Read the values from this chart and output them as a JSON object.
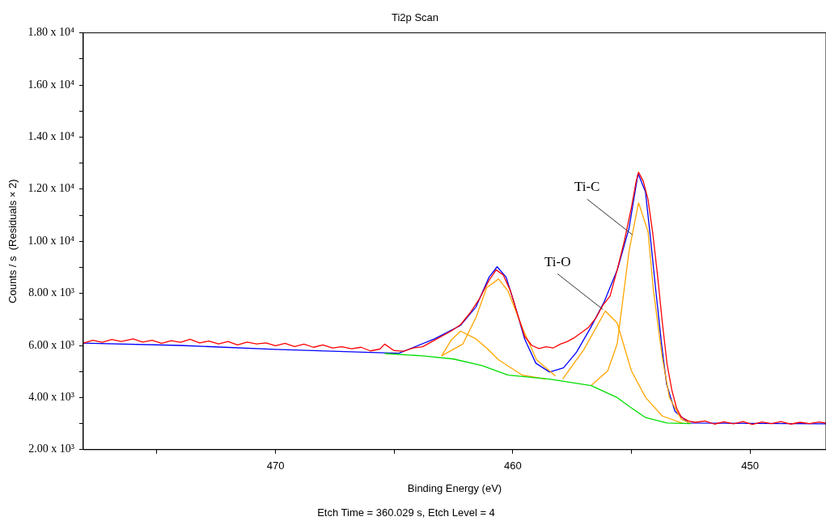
{
  "chart_data": {
    "type": "line",
    "title": "Ti2p Scan",
    "xlabel": "Binding Energy (eV)",
    "ylabel": "Counts / s  (Residuals × 2)",
    "xlim": [
      478.1,
      446.8
    ],
    "xticks": [
      {
        "value": 475,
        "label": null
      },
      470,
      {
        "value": 465,
        "label": null
      },
      460,
      {
        "value": 455,
        "label": null
      },
      450
    ],
    "ylim": [
      2000,
      18000
    ],
    "yticks": [
      {
        "value": 2000,
        "label": "2.00 x 10³"
      },
      {
        "value": 3000,
        "label": null
      },
      {
        "value": 4000,
        "label": "4.00 x 10³"
      },
      {
        "value": 5000,
        "label": null
      },
      {
        "value": 6000,
        "label": "6.00 x 10³"
      },
      {
        "value": 7000,
        "label": null
      },
      {
        "value": 8000,
        "label": "8.00 x 10³"
      },
      {
        "value": 9000,
        "label": null
      },
      {
        "value": 10000,
        "label": "1.00 x 10⁴"
      },
      {
        "value": 11000,
        "label": null
      },
      {
        "value": 12000,
        "label": "1.20 x 10⁴"
      },
      {
        "value": 13000,
        "label": null
      },
      {
        "value": 14000,
        "label": "1.40 x 10⁴"
      },
      {
        "value": 15000,
        "label": null
      },
      {
        "value": 16000,
        "label": "1.60 x 10⁴"
      },
      {
        "value": 17000,
        "label": null
      },
      {
        "value": 18000,
        "label": "1.80 x 10⁴"
      }
    ],
    "grid": false,
    "legend": false,
    "marker": "none",
    "line_style": "solid",
    "series": [
      {
        "color": "#ff0000",
        "x": [
          478.1,
          477.7,
          477.3,
          476.9,
          476.5,
          476.0,
          475.6,
          475.2,
          474.8,
          474.4,
          474.0,
          473.6,
          473.2,
          472.8,
          472.4,
          472.0,
          471.6,
          471.2,
          470.8,
          470.4,
          470.0,
          469.6,
          469.2,
          468.8,
          468.4,
          468.0,
          467.6,
          467.2,
          466.8,
          466.4,
          466.0,
          465.6,
          465.4,
          465.0,
          464.6,
          464.2,
          463.8,
          463.4,
          463.0,
          462.6,
          462.2,
          461.8,
          461.4,
          461.0,
          460.7,
          460.4,
          460.1,
          459.8,
          459.5,
          459.2,
          458.9,
          458.6,
          458.3,
          458.0,
          457.7,
          457.4,
          457.1,
          456.8,
          456.5,
          456.2,
          455.9,
          455.6,
          455.3,
          455.0,
          454.8,
          454.7,
          454.5,
          454.3,
          454.1,
          453.9,
          453.7,
          453.5,
          453.3,
          453.1,
          452.9,
          452.6,
          452.3,
          451.9,
          451.5,
          451.1,
          450.7,
          450.3,
          449.9,
          449.5,
          449.1,
          448.7,
          448.3,
          447.9,
          447.5,
          447.1,
          446.8
        ],
        "values": [
          6090,
          6200,
          6120,
          6230,
          6150,
          6250,
          6130,
          6200,
          6080,
          6180,
          6120,
          6240,
          6100,
          6170,
          6060,
          6150,
          6020,
          6130,
          6060,
          6100,
          5990,
          6080,
          5960,
          6050,
          5930,
          6020,
          5900,
          5950,
          5870,
          5930,
          5790,
          5860,
          6050,
          5800,
          5780,
          5900,
          5950,
          6150,
          6350,
          6550,
          6800,
          7250,
          7800,
          8500,
          8900,
          8700,
          8100,
          7200,
          6350,
          6000,
          5880,
          5950,
          5900,
          6050,
          6150,
          6300,
          6500,
          6700,
          7050,
          7550,
          7900,
          8900,
          10000,
          11300,
          12300,
          12650,
          12300,
          11600,
          10300,
          8700,
          6900,
          5300,
          4300,
          3600,
          3250,
          3100,
          3050,
          3100,
          2980,
          3070,
          2990,
          3080,
          2970,
          3060,
          3000,
          3080,
          2980,
          3050,
          3000,
          3060,
          3020
        ]
      },
      {
        "color": "#00dd00",
        "x": [
          465.4,
          463.8,
          462.5,
          461.3,
          460.2,
          458.45,
          456.7,
          455.6,
          455.0,
          454.4,
          453.5,
          452.5
        ],
        "values": [
          5690,
          5600,
          5480,
          5230,
          4860,
          4710,
          4460,
          4000,
          3600,
          3230,
          3020,
          3000
        ]
      },
      {
        "color": "#ffa500",
        "x": [
          463.0,
          462.6,
          462.2,
          461.55,
          461.1,
          460.6,
          459.6,
          458.6
        ],
        "values": [
          5600,
          6200,
          6550,
          6250,
          5900,
          5450,
          4860,
          4710
        ]
      },
      {
        "color": "#ffa500",
        "x": [
          463.0,
          462.1,
          461.55,
          461.1,
          460.6,
          460.2,
          459.6,
          459.0,
          458.2
        ],
        "values": [
          5600,
          6060,
          7080,
          8220,
          8550,
          8090,
          6680,
          5450,
          4830
        ]
      },
      {
        "color": "#ffa500",
        "x": [
          457.9,
          457.0,
          456.1,
          455.6,
          455.0,
          454.4,
          453.7,
          452.8
        ],
        "values": [
          4710,
          5850,
          7320,
          6860,
          5020,
          4000,
          3290,
          3000
        ]
      },
      {
        "color": "#ffa500",
        "x": [
          456.7,
          456.0,
          455.6,
          455.1,
          454.7,
          454.3,
          454.07,
          453.7,
          453.4,
          452.9,
          452.5
        ],
        "values": [
          4460,
          5020,
          6060,
          9630,
          11480,
          10370,
          8090,
          5540,
          4000,
          3170,
          3000
        ]
      },
      {
        "color": "#0000ff",
        "x": [
          478.1,
          474.0,
          470.0,
          466.0,
          464.8,
          463.3,
          462.2,
          461.55,
          461.0,
          460.66,
          460.28,
          459.93,
          459.5,
          459.03,
          458.45,
          457.86,
          457.31,
          456.72,
          456.14,
          455.59,
          455.1,
          454.72,
          454.41,
          454.2,
          453.97,
          453.73,
          453.52,
          453.17,
          452.59,
          446.8
        ],
        "values": [
          6090,
          6000,
          5850,
          5730,
          5700,
          6250,
          6770,
          7480,
          8620,
          9020,
          8620,
          7600,
          6250,
          5320,
          4980,
          5140,
          5750,
          6680,
          7690,
          8920,
          10500,
          12600,
          11900,
          10150,
          8090,
          6060,
          4520,
          3480,
          3020,
          2990
        ]
      }
    ],
    "annotations": [
      {
        "text": "Ti-C",
        "x": 454.96,
        "y": 10250
      },
      {
        "text": "Ti-O",
        "x": 456.2,
        "y": 7380
      },
      "Etch Time = 360.029 s, Etch Level = 4"
    ]
  }
}
